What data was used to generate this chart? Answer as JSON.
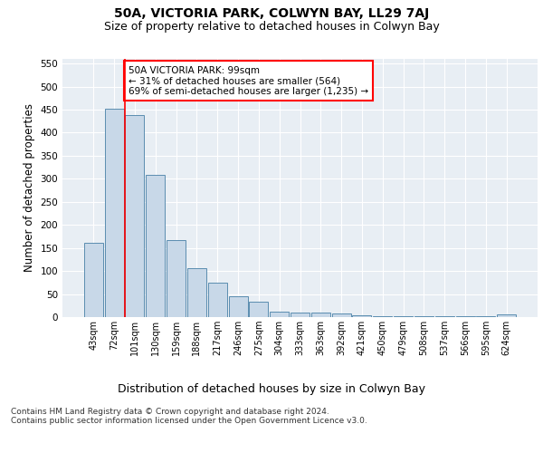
{
  "title": "50A, VICTORIA PARK, COLWYN BAY, LL29 7AJ",
  "subtitle": "Size of property relative to detached houses in Colwyn Bay",
  "xlabel": "Distribution of detached houses by size in Colwyn Bay",
  "ylabel": "Number of detached properties",
  "categories": [
    "43sqm",
    "72sqm",
    "101sqm",
    "130sqm",
    "159sqm",
    "188sqm",
    "217sqm",
    "246sqm",
    "275sqm",
    "304sqm",
    "333sqm",
    "363sqm",
    "392sqm",
    "421sqm",
    "450sqm",
    "479sqm",
    "508sqm",
    "537sqm",
    "566sqm",
    "595sqm",
    "624sqm"
  ],
  "values": [
    162,
    451,
    438,
    308,
    168,
    106,
    74,
    45,
    33,
    11,
    10,
    9,
    8,
    4,
    2,
    2,
    2,
    2,
    1,
    1,
    5
  ],
  "bar_color": "#c8d8e8",
  "bar_edge_color": "#5b8db0",
  "vline_x": 2,
  "vline_color": "red",
  "annotation_text": "50A VICTORIA PARK: 99sqm\n← 31% of detached houses are smaller (564)\n69% of semi-detached houses are larger (1,235) →",
  "annotation_box_color": "white",
  "annotation_box_edge_color": "red",
  "ylim": [
    0,
    560
  ],
  "yticks": [
    0,
    50,
    100,
    150,
    200,
    250,
    300,
    350,
    400,
    450,
    500,
    550
  ],
  "background_color": "#e8eef4",
  "footer": "Contains HM Land Registry data © Crown copyright and database right 2024.\nContains public sector information licensed under the Open Government Licence v3.0.",
  "title_fontsize": 10,
  "subtitle_fontsize": 9,
  "xlabel_fontsize": 9,
  "ylabel_fontsize": 8.5,
  "footer_fontsize": 6.5
}
